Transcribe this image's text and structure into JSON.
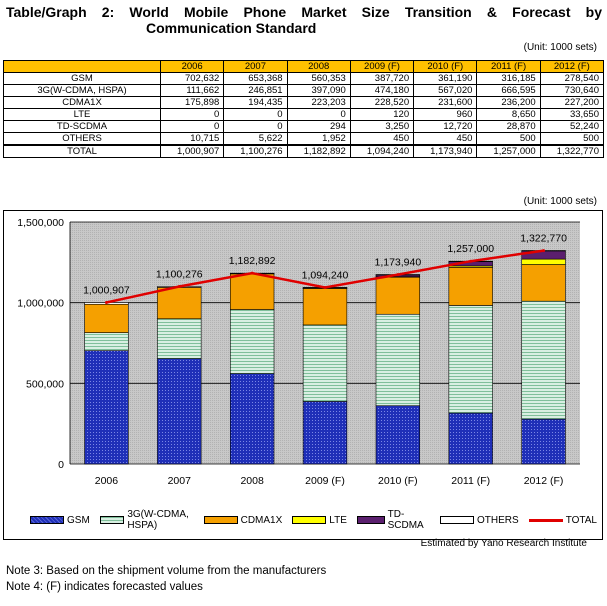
{
  "title": {
    "line1": "Table/Graph 2: World Mobile Phone Market Size Transition & Forecast by",
    "line2": "Communication Standard"
  },
  "unit_label": "(Unit: 1000 sets)",
  "table": {
    "columns": [
      "2006",
      "2007",
      "2008",
      "2009 (F)",
      "2010 (F)",
      "2011 (F)",
      "2012 (F)"
    ],
    "rows": [
      {
        "label": "GSM",
        "values": [
          "702,632",
          "653,368",
          "560,353",
          "387,720",
          "361,190",
          "316,185",
          "278,540"
        ]
      },
      {
        "label": "3G(W-CDMA, HSPA)",
        "values": [
          "111,662",
          "246,851",
          "397,090",
          "474,180",
          "567,020",
          "666,595",
          "730,640"
        ]
      },
      {
        "label": "CDMA1X",
        "values": [
          "175,898",
          "194,435",
          "223,203",
          "228,520",
          "231,600",
          "236,200",
          "227,200"
        ]
      },
      {
        "label": "LTE",
        "values": [
          "0",
          "0",
          "0",
          "120",
          "960",
          "8,650",
          "33,650"
        ]
      },
      {
        "label": "TD-SCDMA",
        "values": [
          "0",
          "0",
          "294",
          "3,250",
          "12,720",
          "28,870",
          "52,240"
        ]
      },
      {
        "label": "OTHERS",
        "values": [
          "10,715",
          "5,622",
          "1,952",
          "450",
          "450",
          "500",
          "500"
        ]
      },
      {
        "label": "TOTAL",
        "values": [
          "1,000,907",
          "1,100,276",
          "1,182,892",
          "1,094,240",
          "1,173,940",
          "1,257,000",
          "1,322,770"
        ]
      }
    ]
  },
  "chart_data": {
    "type": "bar",
    "stacked": true,
    "categories": [
      "2006",
      "2007",
      "2008",
      "2009 (F)",
      "2010 (F)",
      "2011 (F)",
      "2012 (F)"
    ],
    "ylim": [
      0,
      1500000
    ],
    "yticks": [
      0,
      500000,
      1000000,
      1500000
    ],
    "ytick_labels": [
      "0",
      "500,000",
      "1,000,000",
      "1,500,000"
    ],
    "grid": true,
    "legend": "bottom",
    "series": [
      {
        "name": "GSM",
        "values": [
          702632,
          653368,
          560353,
          387720,
          361190,
          316185,
          278540
        ],
        "color": "#1F2FB8"
      },
      {
        "name": "3G(W-CDMA, HSPA)",
        "values": [
          111662,
          246851,
          397090,
          474180,
          567020,
          666595,
          730640
        ],
        "color": "#C8E6D4"
      },
      {
        "name": "CDMA1X",
        "values": [
          175898,
          194435,
          223203,
          228520,
          231600,
          236200,
          227200
        ],
        "color": "#F5A000"
      },
      {
        "name": "LTE",
        "values": [
          0,
          0,
          0,
          120,
          960,
          8650,
          33650
        ],
        "color": "#FFFF00"
      },
      {
        "name": "TD-SCDMA",
        "values": [
          0,
          0,
          294,
          3250,
          12720,
          28870,
          52240
        ],
        "color": "#5B1F6E"
      },
      {
        "name": "OTHERS",
        "values": [
          10715,
          5622,
          1952,
          450,
          450,
          500,
          500
        ],
        "color": "#FFFFFF"
      }
    ],
    "total": {
      "name": "TOTAL",
      "values": [
        1000907,
        1100276,
        1182892,
        1094240,
        1173940,
        1257000,
        1322770
      ],
      "color": "#E00000"
    },
    "total_labels": [
      "1,000,907",
      "1,100,276",
      "1,182,892",
      "1,094,240",
      "1,173,940",
      "1,257,000",
      "1,322,770"
    ]
  },
  "legend_labels": [
    "GSM",
    "3G(W-CDMA, HSPA)",
    "CDMA1X",
    "LTE",
    "TD-SCDMA",
    "OTHERS",
    "TOTAL"
  ],
  "estimated": "Estimated by Yano Research Institute",
  "notes": [
    "Note 3: Based on the shipment volume from the manufacturers",
    "Note 4: (F) indicates forecasted values"
  ]
}
